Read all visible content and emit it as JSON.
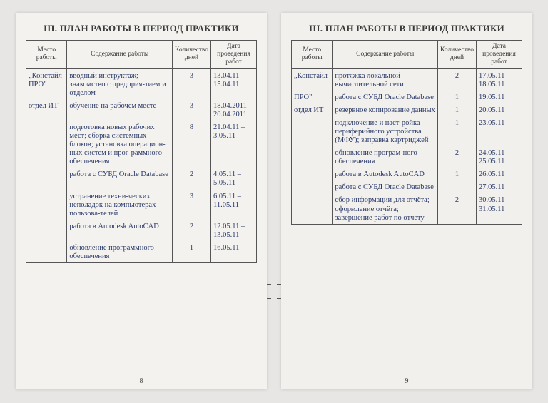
{
  "title": "III. ПЛАН РАБОТЫ В ПЕРИОД ПРАКТИКИ",
  "headers": {
    "place": "Место работы",
    "content": "Содержание работы",
    "days": "Количество дней",
    "date": "Дата проведения работ"
  },
  "left": {
    "pagenum": "8",
    "place_lines": [
      "„Констайл-ПРО\"",
      "отдел ИТ"
    ],
    "rows": [
      {
        "content": "вводный инструктаж; знакомство с предприя-тием и отделом",
        "days": "3",
        "date": "13.04.11 – 15.04.11"
      },
      {
        "content": "обучение на рабочем месте",
        "days": "3",
        "date": "18.04.2011 – 20.04.2011"
      },
      {
        "content": "подготовка новых рабочих мест; сборка системных блоков; установка операцион-ных систем и прог-раммного обеспечения",
        "days": "8",
        "date": "21.04.11 – 3.05.11"
      },
      {
        "content": "работа с СУБД Oracle Database",
        "days": "2",
        "date": "4.05.11 – 5.05.11"
      },
      {
        "content": "устранение техни-ческих неполадок на компьютерах пользова-телей",
        "days": "3",
        "date": "6.05.11 – 11.05.11"
      },
      {
        "content": "работа в Autodesk AutoCAD",
        "days": "2",
        "date": "12.05.11 – 13.05.11"
      },
      {
        "content": "обновление программного обеспечения",
        "days": "1",
        "date": "16.05.11"
      }
    ]
  },
  "right": {
    "pagenum": "9",
    "place_lines": [
      "„Констайл-",
      "ПРО\"",
      "отдел ИТ"
    ],
    "rows": [
      {
        "content": "протяжка локальной вычислительной сети",
        "days": "2",
        "date": "17.05.11 – 18.05.11"
      },
      {
        "content": "работа с СУБД Oracle Database",
        "days": "1",
        "date": "19.05.11"
      },
      {
        "content": "резервное копирование данных",
        "days": "1",
        "date": "20.05.11"
      },
      {
        "content": "подключение и наст-ройка периферийного устройства (МФУ); заправка картриджей",
        "days": "1",
        "date": "23.05.11"
      },
      {
        "content": "обновление програм-ного обеспечения",
        "days": "2",
        "date": "24.05.11 – 25.05.11"
      },
      {
        "content": "работа в Autodesk AutoCAD",
        "days": "1",
        "date": "26.05.11"
      },
      {
        "content": "работа с СУБД Oracle Database",
        "days": "",
        "date": "27.05.11"
      },
      {
        "content": "сбор информации для отчёта; оформление отчёта; завершение работ по отчёту",
        "days": "2",
        "date": "30.05.11 – 31.05.11"
      }
    ]
  }
}
